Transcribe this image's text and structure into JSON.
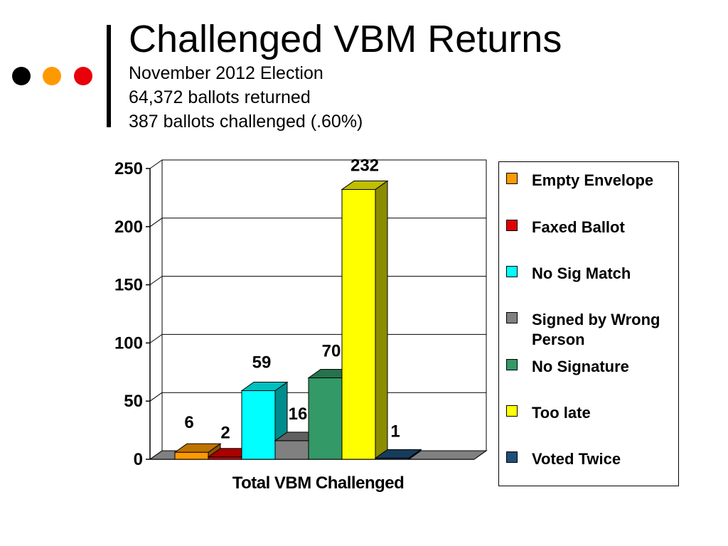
{
  "slide": {
    "title": "Challenged VBM Returns",
    "subtitle_lines": [
      "November 2012 Election",
      "64,372 ballots returned",
      "387 ballots challenged (.60%)"
    ],
    "decor_dot_colors": [
      "#000000",
      "#FF9900",
      "#E8000B"
    ]
  },
  "chart_data": {
    "type": "bar",
    "style": "3d-clustered",
    "title": "",
    "categories": [
      "Total VBM Challenged"
    ],
    "xlabel": "",
    "ylabel": "",
    "ylim": [
      0,
      250
    ],
    "yticks": [
      0,
      50,
      100,
      150,
      200,
      250
    ],
    "grid": true,
    "legend_position": "right",
    "series": [
      {
        "name": "Empty Envelope",
        "values": [
          6
        ],
        "color": "#FF9900",
        "label": "6"
      },
      {
        "name": "Faxed Ballot",
        "values": [
          2
        ],
        "color": "#E00000",
        "label": "2"
      },
      {
        "name": "No Sig Match",
        "values": [
          59
        ],
        "color": "#00FFFF",
        "label": "59"
      },
      {
        "name": "Signed by Wrong Person",
        "values": [
          16
        ],
        "color": "#808080",
        "label": "16"
      },
      {
        "name": "No Signature",
        "values": [
          70
        ],
        "color": "#339966",
        "label": "70"
      },
      {
        "name": "Too late",
        "values": [
          232
        ],
        "color": "#FFFF00",
        "label": "232"
      },
      {
        "name": "Voted Twice",
        "values": [
          1
        ],
        "color": "#1F4E79",
        "label": "1"
      }
    ]
  }
}
